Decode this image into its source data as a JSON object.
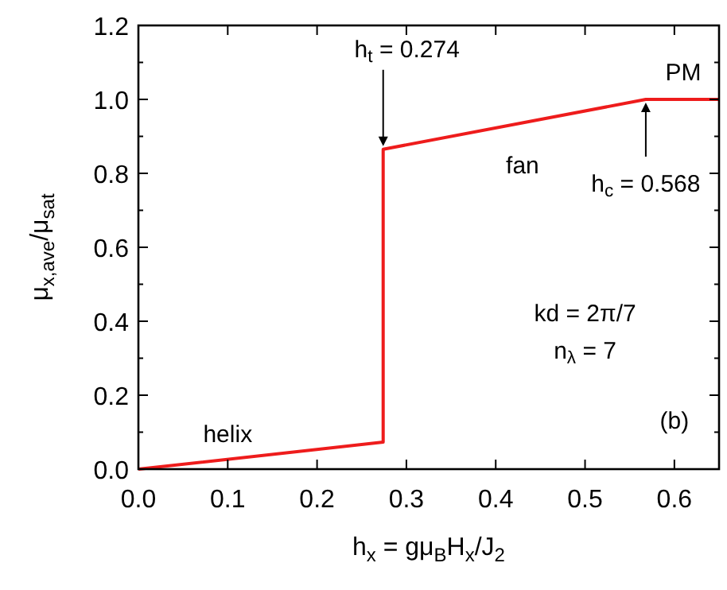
{
  "chart_data": {
    "type": "line",
    "xlabel": "h$_{x}$ = gμ$_{B}$H$_{x}$/J$_{2}$",
    "ylabel": "μ$_{x,ave}$/μ$_{sat}$",
    "series": [
      {
        "color": "#ee1c1c",
        "x": [
          0,
          0.274,
          0.274,
          0.568,
          0.65
        ],
        "values": [
          0,
          0.073,
          0.865,
          1.0,
          1.0
        ]
      }
    ],
    "xlim": [
      0,
      0.65
    ],
    "xticks": [
      {
        "value": 0,
        "label": "0.0"
      },
      0.1,
      0.2,
      0.3,
      0.4,
      0.5,
      0.6
    ],
    "ylim": [
      0,
      1.2
    ],
    "yticks": [
      {
        "value": 0,
        "label": "0.0"
      },
      0.2,
      0.4,
      0.6,
      0.8,
      {
        "value": 1,
        "label": "1.0"
      },
      1.2
    ],
    "grid": false,
    "line_style": "solid",
    "annotations": [
      {
        "text": "h$_{t}$ = 0.274",
        "x": 0.274,
        "y": 0.865
      },
      {
        "text": "fan",
        "x": 0.43,
        "y": 0.93
      },
      {
        "text": "h$_{c}$ = 0.568",
        "x": 0.568,
        "y": 1.0
      },
      {
        "text": "PM",
        "x": 0.61,
        "y": 1.0
      },
      "kd = 2π/7",
      "n$_{λ}$ = 7",
      {
        "text": "helix",
        "x": 0.1,
        "y": 0.03
      },
      "(b)"
    ]
  }
}
